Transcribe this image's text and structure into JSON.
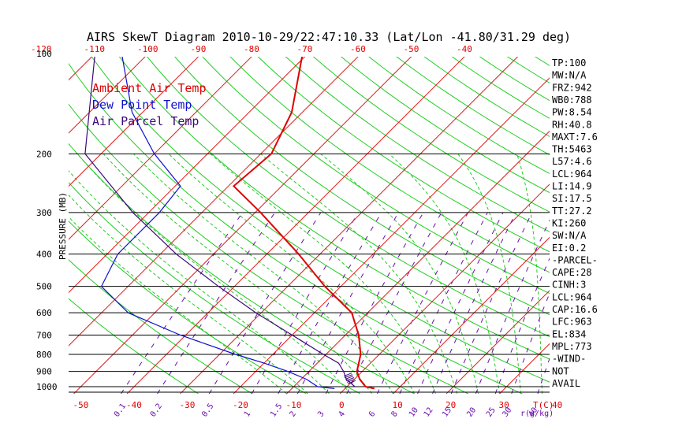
{
  "title": "AIRS SkewT Diagram 2010-10-29/22:47:10.33 (Lat/Lon -41.80/31.29 deg)",
  "colors": {
    "ambient": "#e00000",
    "dewpoint": "#1010d0",
    "parcel": "#3b0a7a",
    "isotherm": "#e02020",
    "dry_adiabat": "#22cc22",
    "moist_adiabat": "#22cc22",
    "mixing_ratio": "#6a0dad",
    "isobar": "#000000"
  },
  "legend": [
    {
      "label": "Ambient Air Temp",
      "color": "#e00000"
    },
    {
      "label": "Dew Point Temp",
      "color": "#1010d0"
    },
    {
      "label": "Air Parcel Temp",
      "color": "#3b0a7a"
    }
  ],
  "indices": [
    "TP:100",
    "MW:N/A",
    "FRZ:942",
    "WB0:788",
    "PW:8.54",
    "RH:40.8",
    "MAXT:7.6",
    "TH:5463",
    "L57:4.6",
    "LCL:964",
    "LI:14.9",
    "SI:17.5",
    "TT:27.2",
    "KI:260",
    "SW:N/A",
    "EI:0.2",
    "-PARCEL-",
    "CAPE:28",
    "CINH:3",
    "LCL:964",
    "CAP:16.6",
    "LFC:963",
    "EL:834",
    "MPL:773",
    "-WIND-",
    "NOT",
    "AVAIL"
  ],
  "chart_data": {
    "type": "line",
    "title": "AIRS SkewT Diagram 2010-10-29/22:47:10.33 (Lat/Lon -41.80/31.29 deg)",
    "ylabel": "PRESSURE (MB)",
    "xlabel": "T(C)",
    "mixing_label": "r(g/kg)",
    "pressure_ticks": [
      100,
      200,
      300,
      400,
      500,
      600,
      700,
      800,
      900,
      1000
    ],
    "top_temp_ticks": [
      -120,
      -110,
      -100,
      -90,
      -80,
      -70,
      -60,
      -50,
      -40
    ],
    "bottom_temp_ticks": [
      -50,
      -40,
      -30,
      -20,
      -10,
      0,
      10,
      20,
      30,
      40
    ],
    "mixing_ratio_ticks": [
      "0.1",
      "0.2",
      "0.5",
      "1",
      "1.5",
      "2",
      "3",
      "4",
      "6",
      "8",
      "10",
      "12",
      "15",
      "20",
      "25",
      "30",
      "40"
    ],
    "ylim": [
      1050,
      100
    ],
    "series": [
      {
        "name": "Ambient Air Temp",
        "points": [
          [
            1013,
            5.5
          ],
          [
            1000,
            3.5
          ],
          [
            950,
            1.0
          ],
          [
            900,
            -1.0
          ],
          [
            850,
            -2.2
          ],
          [
            800,
            -3.5
          ],
          [
            700,
            -7.5
          ],
          [
            600,
            -13.0
          ],
          [
            500,
            -23.0
          ],
          [
            400,
            -34.0
          ],
          [
            300,
            -49.0
          ],
          [
            250,
            -59.0
          ],
          [
            200,
            -58.0
          ],
          [
            150,
            -62.0
          ],
          [
            100,
            -71.0
          ]
        ]
      },
      {
        "name": "Dew Point Temp",
        "points": [
          [
            1013,
            -2.0
          ],
          [
            1000,
            -5.5
          ],
          [
            950,
            -9.0
          ],
          [
            900,
            -14.0
          ],
          [
            850,
            -20.0
          ],
          [
            800,
            -27.0
          ],
          [
            700,
            -41.0
          ],
          [
            600,
            -55.0
          ],
          [
            500,
            -65.0
          ],
          [
            400,
            -68.0
          ],
          [
            300,
            -68.0
          ],
          [
            250,
            -69.0
          ],
          [
            200,
            -80.0
          ],
          [
            150,
            -92.0
          ],
          [
            100,
            -105.0
          ]
        ]
      },
      {
        "name": "Air Parcel Temp",
        "points": [
          [
            1000,
            1.5
          ],
          [
            950,
            -1.5
          ],
          [
            900,
            -3.5
          ],
          [
            850,
            -6.0
          ],
          [
            800,
            -10.5
          ],
          [
            700,
            -20.0
          ],
          [
            600,
            -31.0
          ],
          [
            500,
            -43.0
          ],
          [
            400,
            -57.0
          ],
          [
            300,
            -73.0
          ],
          [
            200,
            -93.0
          ],
          [
            100,
            -110.0
          ]
        ]
      }
    ]
  }
}
